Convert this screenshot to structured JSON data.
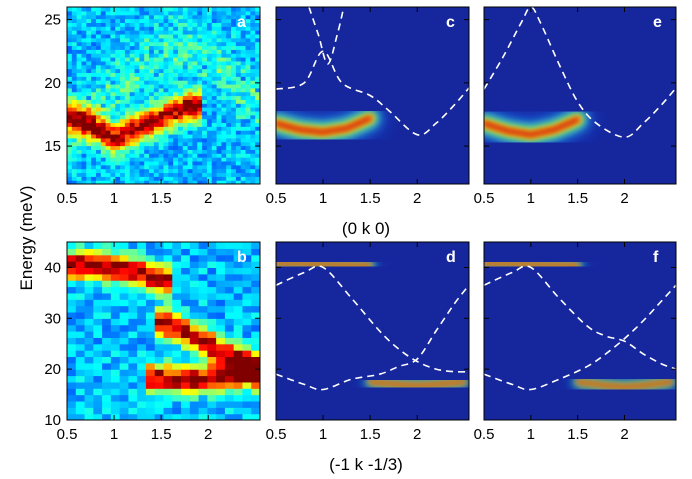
{
  "figure": {
    "ylabel": "Energy (meV)",
    "xlabel_top": "(0 k 0)",
    "xlabel_bottom": "(-1 k -1/3)"
  },
  "chart_data": [
    {
      "type": "heatmap",
      "panel": "a",
      "label": "a",
      "source": "measured",
      "xlim": [
        0.5,
        2.55
      ],
      "ylim": [
        12,
        26
      ],
      "xticks": [
        0.5,
        1,
        1.5,
        2
      ],
      "xtick_labels": [
        "0.5",
        "1",
        "1.5",
        "2"
      ],
      "yticks": [
        15,
        20,
        25
      ],
      "ytick_labels": [
        "15",
        "20",
        "25"
      ],
      "bands": [
        {
          "x": [
            0.5,
            0.8,
            1.0,
            1.2,
            1.5,
            1.8
          ],
          "y": [
            17.4,
            16.6,
            15.6,
            16.3,
            17.3,
            18.2
          ]
        }
      ],
      "dispersion_curves": []
    },
    {
      "type": "heatmap",
      "panel": "c",
      "label": "c",
      "source": "calculated",
      "xlim": [
        0.5,
        2.55
      ],
      "ylim": [
        12,
        26
      ],
      "xticks": [
        0.5,
        1,
        1.5,
        2
      ],
      "xtick_labels": [
        "0.5",
        "1",
        "1.5",
        "2"
      ],
      "yticks": [
        15,
        20,
        25
      ],
      "ytick_labels": [],
      "bands": [
        {
          "x": [
            0.5,
            0.75,
            1.0,
            1.25,
            1.5
          ],
          "y": [
            16.8,
            16.3,
            16.1,
            16.4,
            17.2
          ]
        }
      ],
      "dispersion_curves": [
        {
          "x": [
            0.5,
            0.8,
            1.0,
            1.2,
            1.5,
            1.7,
            2.0,
            2.2,
            2.4,
            2.55
          ],
          "y": [
            19.5,
            20.0,
            22.5,
            20.0,
            19.0,
            17.8,
            15.9,
            16.8,
            18.3,
            19.6
          ]
        },
        {
          "x": [
            0.85,
            0.95,
            1.05,
            1.15,
            1.22
          ],
          "y": [
            26.0,
            23.8,
            21.5,
            23.8,
            26.0
          ]
        }
      ]
    },
    {
      "type": "heatmap",
      "panel": "e",
      "label": "e",
      "source": "calculated",
      "xlim": [
        0.5,
        2.55
      ],
      "ylim": [
        12,
        26
      ],
      "xticks": [
        0.5,
        1,
        1.5,
        2
      ],
      "xtick_labels": [
        "0.5",
        "1",
        "1.5",
        "2"
      ],
      "yticks": [
        15,
        20,
        25
      ],
      "ytick_labels": [],
      "bands": [
        {
          "x": [
            0.5,
            0.75,
            1.0,
            1.25,
            1.5
          ],
          "y": [
            16.8,
            16.2,
            15.9,
            16.3,
            17.1
          ]
        }
      ],
      "dispersion_curves": [
        {
          "x": [
            0.5,
            0.7,
            0.9,
            1.0,
            1.1,
            1.3,
            1.5,
            1.7,
            2.0,
            2.2,
            2.4,
            2.55
          ],
          "y": [
            19.5,
            22.0,
            24.8,
            26.0,
            24.8,
            21.5,
            18.5,
            16.8,
            15.7,
            16.8,
            18.3,
            19.6
          ]
        }
      ]
    },
    {
      "type": "heatmap",
      "panel": "b",
      "label": "b",
      "source": "measured",
      "xlim": [
        0.5,
        2.55
      ],
      "ylim": [
        10,
        45
      ],
      "xticks": [
        0.5,
        1,
        1.5,
        2
      ],
      "xtick_labels": [
        "0.5",
        "1",
        "1.5",
        "2"
      ],
      "yticks": [
        10,
        20,
        30,
        40
      ],
      "ytick_labels": [
        "10",
        "20",
        "30",
        "40"
      ],
      "bands": [
        {
          "x": [
            0.5,
            0.8,
            1.0,
            1.3,
            1.5
          ],
          "y": [
            40.5,
            40.5,
            40.0,
            39.0,
            37.5
          ]
        },
        {
          "x": [
            1.6,
            1.9,
            2.2,
            2.5
          ],
          "y": [
            29.0,
            26.0,
            23.0,
            20.5
          ]
        },
        {
          "x": [
            1.5,
            1.8,
            2.1,
            2.4
          ],
          "y": [
            18.5,
            18.0,
            18.5,
            19.0
          ]
        }
      ],
      "dispersion_curves": []
    },
    {
      "type": "heatmap",
      "panel": "d",
      "label": "d",
      "source": "calculated",
      "xlim": [
        0.5,
        2.55
      ],
      "ylim": [
        10,
        45
      ],
      "xticks": [
        0.5,
        1,
        1.5,
        2
      ],
      "xtick_labels": [
        "0.5",
        "1",
        "1.5",
        "2"
      ],
      "yticks": [
        10,
        20,
        30,
        40
      ],
      "ytick_labels": [],
      "bands": [
        {
          "x": [
            0.5,
            0.75,
            1.0,
            1.25,
            1.5
          ],
          "y": [
            40.8,
            40.7,
            40.6,
            40.5,
            40.4
          ]
        },
        {
          "x": [
            1.5,
            1.8,
            2.0,
            2.2,
            2.5
          ],
          "y": [
            17.5,
            17.0,
            16.8,
            17.0,
            17.5
          ]
        }
      ],
      "dispersion_curves": [
        {
          "x": [
            0.5,
            0.8,
            1.0,
            1.3,
            1.6,
            1.8,
            2.0,
            2.2,
            2.4,
            2.55
          ],
          "y": [
            19.0,
            17.0,
            16.0,
            18.0,
            19.0,
            20.5,
            22.0,
            27.5,
            33.0,
            36.5
          ]
        },
        {
          "x": [
            0.5,
            0.8,
            1.0,
            1.3,
            1.6,
            1.8,
            2.0,
            2.2,
            2.4,
            2.55
          ],
          "y": [
            36.5,
            39.0,
            40.0,
            34.0,
            27.5,
            24.0,
            21.5,
            20.0,
            19.5,
            19.5
          ]
        }
      ]
    },
    {
      "type": "heatmap",
      "panel": "f",
      "label": "f",
      "source": "calculated",
      "xlim": [
        0.5,
        2.55
      ],
      "ylim": [
        10,
        45
      ],
      "xticks": [
        0.5,
        1,
        1.5,
        2
      ],
      "xtick_labels": [
        "0.5",
        "1",
        "1.5",
        "2"
      ],
      "yticks": [
        10,
        20,
        30,
        40
      ],
      "ytick_labels": [],
      "bands": [
        {
          "x": [
            0.5,
            0.75,
            1.0,
            1.25,
            1.5
          ],
          "y": [
            40.8,
            40.7,
            40.6,
            40.5,
            40.4
          ]
        },
        {
          "x": [
            1.5,
            1.8,
            2.0,
            2.2,
            2.5
          ],
          "y": [
            17.5,
            16.8,
            16.5,
            16.8,
            17.5
          ]
        }
      ],
      "dispersion_curves": [
        {
          "x": [
            0.5,
            0.8,
            1.0,
            1.3,
            1.6,
            1.8,
            2.0,
            2.2,
            2.4,
            2.55
          ],
          "y": [
            19.0,
            17.0,
            16.0,
            18.0,
            20.5,
            23.0,
            26.0,
            29.5,
            33.5,
            36.5
          ]
        },
        {
          "x": [
            0.5,
            0.8,
            1.0,
            1.3,
            1.6,
            1.8,
            2.0,
            2.2,
            2.4,
            2.55
          ],
          "y": [
            36.5,
            39.0,
            40.0,
            34.0,
            28.5,
            26.5,
            25.5,
            23.0,
            21.0,
            20.0
          ]
        }
      ]
    }
  ]
}
